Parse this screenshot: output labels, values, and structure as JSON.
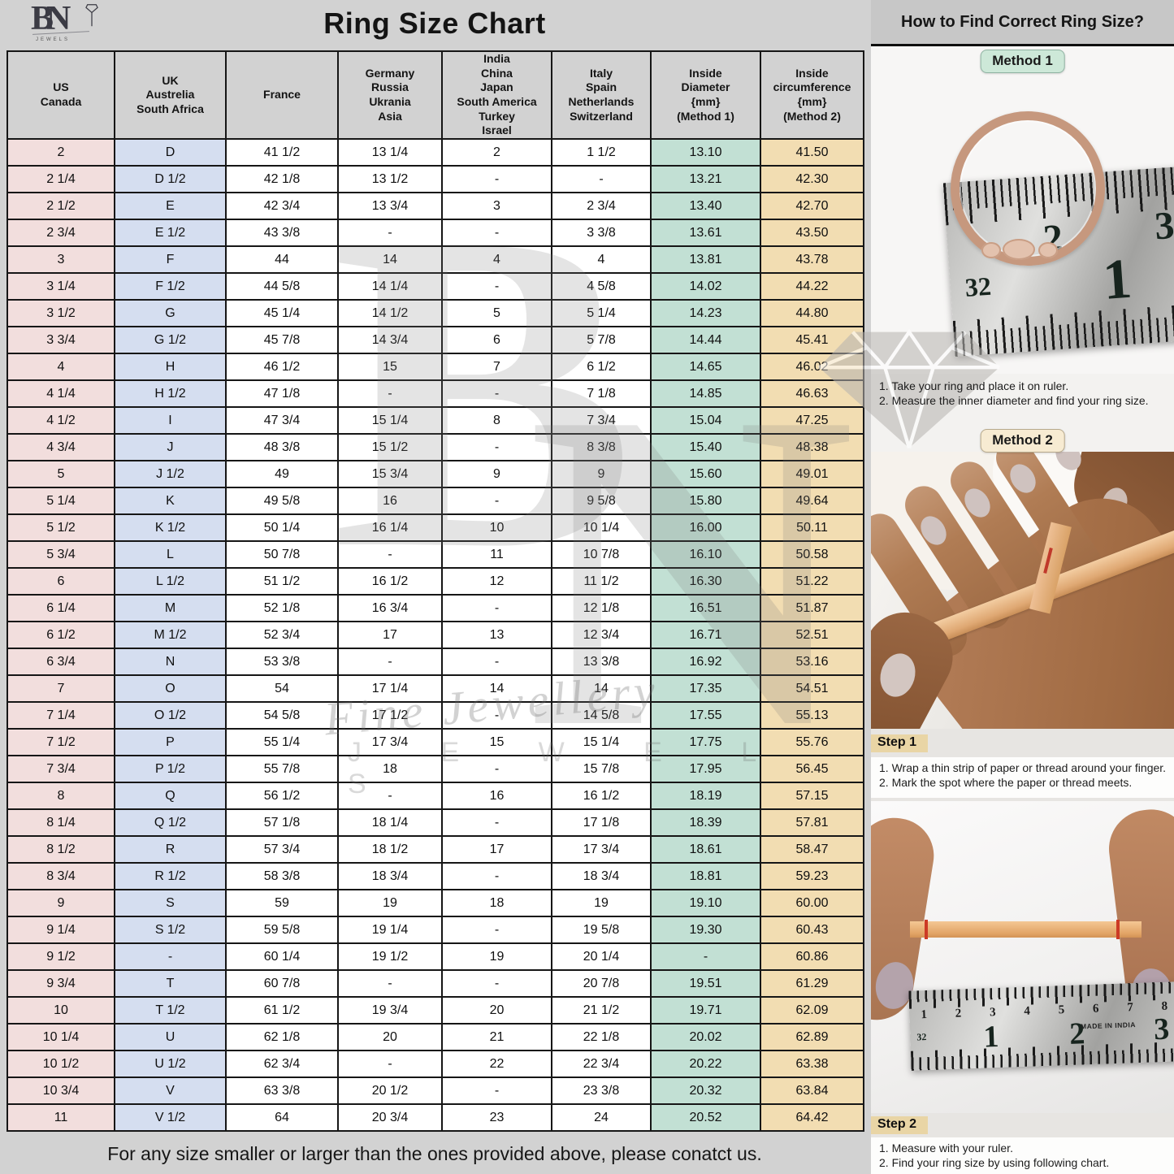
{
  "page": {
    "title": "Ring Size Chart",
    "footer_note": "For any size smaller or larger than the ones provided above, please conatct us."
  },
  "logo": {
    "letter_b": "B",
    "letter_n": "N",
    "sub": "JEWELS"
  },
  "chart_data": {
    "type": "table",
    "title": "Ring Size Chart",
    "columns": [
      "US\nCanada",
      "UK\nAustrelia\nSouth Africa",
      "France",
      "Germany\nRussia\nUkrania\nAsia",
      "India\nChina\nJapan\nSouth America\nTurkey\nIsrael",
      "Italy\nSpain\nNetherlands\nSwitzerland",
      "Inside\nDiameter\n{mm}\n(Method 1)",
      "Inside\ncircumference\n{mm}\n(Method 2)"
    ],
    "rows": [
      [
        "2",
        "D",
        "41 1/2",
        "13 1/4",
        "2",
        "1 1/2",
        "13.10",
        "41.50"
      ],
      [
        "2 1/4",
        "D 1/2",
        "42 1/8",
        "13 1/2",
        "-",
        "-",
        "13.21",
        "42.30"
      ],
      [
        "2 1/2",
        "E",
        "42 3/4",
        "13 3/4",
        "3",
        "2 3/4",
        "13.40",
        "42.70"
      ],
      [
        "2 3/4",
        "E 1/2",
        "43 3/8",
        "-",
        "-",
        "3 3/8",
        "13.61",
        "43.50"
      ],
      [
        "3",
        "F",
        "44",
        "14",
        "4",
        "4",
        "13.81",
        "43.78"
      ],
      [
        "3 1/4",
        "F 1/2",
        "44 5/8",
        "14 1/4",
        "-",
        "4 5/8",
        "14.02",
        "44.22"
      ],
      [
        "3 1/2",
        "G",
        "45 1/4",
        "14 1/2",
        "5",
        "5 1/4",
        "14.23",
        "44.80"
      ],
      [
        "3 3/4",
        "G 1/2",
        "45 7/8",
        "14 3/4",
        "6",
        "5 7/8",
        "14.44",
        "45.41"
      ],
      [
        "4",
        "H",
        "46 1/2",
        "15",
        "7",
        "6 1/2",
        "14.65",
        "46.02"
      ],
      [
        "4 1/4",
        "H 1/2",
        "47 1/8",
        "-",
        "-",
        "7 1/8",
        "14.85",
        "46.63"
      ],
      [
        "4 1/2",
        "I",
        "47 3/4",
        "15 1/4",
        "8",
        "7 3/4",
        "15.04",
        "47.25"
      ],
      [
        "4 3/4",
        "J",
        "48 3/8",
        "15 1/2",
        "-",
        "8 3/8",
        "15.40",
        "48.38"
      ],
      [
        "5",
        "J 1/2",
        "49",
        "15 3/4",
        "9",
        "9",
        "15.60",
        "49.01"
      ],
      [
        "5 1/4",
        "K",
        "49 5/8",
        "16",
        "-",
        "9 5/8",
        "15.80",
        "49.64"
      ],
      [
        "5 1/2",
        "K 1/2",
        "50 1/4",
        "16 1/4",
        "10",
        "10 1/4",
        "16.00",
        "50.11"
      ],
      [
        "5 3/4",
        "L",
        "50 7/8",
        "-",
        "11",
        "10 7/8",
        "16.10",
        "50.58"
      ],
      [
        "6",
        "L 1/2",
        "51 1/2",
        "16 1/2",
        "12",
        "11 1/2",
        "16.30",
        "51.22"
      ],
      [
        "6 1/4",
        "M",
        "52 1/8",
        "16 3/4",
        "-",
        "12 1/8",
        "16.51",
        "51.87"
      ],
      [
        "6 1/2",
        "M 1/2",
        "52 3/4",
        "17",
        "13",
        "12 3/4",
        "16.71",
        "52.51"
      ],
      [
        "6 3/4",
        "N",
        "53 3/8",
        "-",
        "-",
        "13 3/8",
        "16.92",
        "53.16"
      ],
      [
        "7",
        "O",
        "54",
        "17 1/4",
        "14",
        "14",
        "17.35",
        "54.51"
      ],
      [
        "7 1/4",
        "O 1/2",
        "54 5/8",
        "17 1/2",
        "-",
        "14 5/8",
        "17.55",
        "55.13"
      ],
      [
        "7 1/2",
        "P",
        "55 1/4",
        "17 3/4",
        "15",
        "15 1/4",
        "17.75",
        "55.76"
      ],
      [
        "7 3/4",
        "P 1/2",
        "55 7/8",
        "18",
        "-",
        "15 7/8",
        "17.95",
        "56.45"
      ],
      [
        "8",
        "Q",
        "56 1/2",
        "-",
        "16",
        "16 1/2",
        "18.19",
        "57.15"
      ],
      [
        "8 1/4",
        "Q 1/2",
        "57 1/8",
        "18 1/4",
        "-",
        "17 1/8",
        "18.39",
        "57.81"
      ],
      [
        "8 1/2",
        "R",
        "57 3/4",
        "18 1/2",
        "17",
        "17 3/4",
        "18.61",
        "58.47"
      ],
      [
        "8 3/4",
        "R 1/2",
        "58 3/8",
        "18 3/4",
        "-",
        "18 3/4",
        "18.81",
        "59.23"
      ],
      [
        "9",
        "S",
        "59",
        "19",
        "18",
        "19",
        "19.10",
        "60.00"
      ],
      [
        "9 1/4",
        "S 1/2",
        "59 5/8",
        "19 1/4",
        "-",
        "19 5/8",
        "19.30",
        "60.43"
      ],
      [
        "9 1/2",
        "-",
        "60 1/4",
        "19 1/2",
        "19",
        "20 1/4",
        "-",
        "60.86"
      ],
      [
        "9 3/4",
        "T",
        "60 7/8",
        "-",
        "-",
        "20 7/8",
        "19.51",
        "61.29"
      ],
      [
        "10",
        "T 1/2",
        "61 1/2",
        "19 3/4",
        "20",
        "21 1/2",
        "19.71",
        "62.09"
      ],
      [
        "10 1/4",
        "U",
        "62 1/8",
        "20",
        "21",
        "22 1/8",
        "20.02",
        "62.89"
      ],
      [
        "10 1/2",
        "U 1/2",
        "62 3/4",
        "-",
        "22",
        "22 3/4",
        "20.22",
        "63.38"
      ],
      [
        "10 3/4",
        "V",
        "63 3/8",
        "20 1/2",
        "-",
        "23 3/8",
        "20.32",
        "63.84"
      ],
      [
        "11",
        "V 1/2",
        "64",
        "20 3/4",
        "23",
        "24",
        "20.52",
        "64.42"
      ]
    ]
  },
  "right_panel": {
    "title": "How to Find Correct Ring Size?",
    "method1": {
      "label": "Method 1",
      "instructions": [
        "1. Take your ring and place it on ruler.",
        "2. Measure the inner diameter and find your ring size."
      ]
    },
    "method2": {
      "label": "Method 2"
    },
    "step1": {
      "label": "Step 1",
      "instructions": [
        "1. Wrap a thin strip of paper or thread around your finger.",
        "2. Mark the spot where the paper or thread meets."
      ]
    },
    "step2": {
      "label": "Step 2",
      "instructions": [
        "1. Measure with your ruler.",
        "2. Find your ring size by using following chart."
      ]
    },
    "ruler_photo1": {
      "numbers_top": [
        "2",
        "3"
      ],
      "number_big": "1",
      "number_small": "32"
    },
    "ruler_photo2": {
      "numbers_top": [
        "1",
        "2",
        "3",
        "4",
        "5",
        "6",
        "7",
        "8"
      ],
      "numbers_big": [
        "1",
        "2",
        "3"
      ],
      "number_small": "32",
      "stamp": "MADE IN INDIA"
    }
  },
  "watermark": {
    "letter_b": "B",
    "letter_n": "N",
    "script": "Fine Jewellery",
    "letters": "J E W E L S"
  },
  "colors": {
    "page_bg": "#d2d2d2",
    "col_us_canada": "#f2dedd",
    "col_uk": "#d5def0",
    "col_plain": "#ffffff",
    "col_inside_diameter": "#c2e0d4",
    "col_inside_circumference": "#f2ddb2",
    "badge_method1_bg": "#cde8d8",
    "badge_method2_bg": "#f7ebd2",
    "step_label_bg": "#e9d5a5",
    "ring_gold": "#c6987e"
  }
}
